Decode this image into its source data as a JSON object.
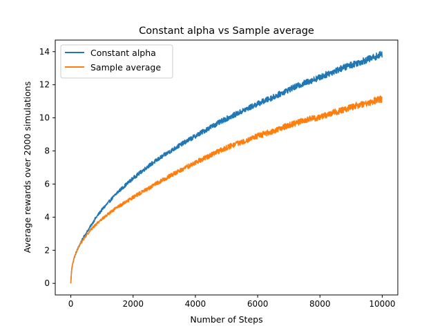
{
  "chart_data": {
    "type": "line",
    "title": "Constant alpha vs Sample average",
    "xlabel": "Number of Steps",
    "ylabel": "Average rewards over 2000 simulations",
    "xlim": [
      -500,
      10500
    ],
    "ylim": [
      -0.7,
      14.7
    ],
    "xticks": [
      0,
      2000,
      4000,
      6000,
      8000,
      10000
    ],
    "xtick_labels": [
      "0",
      "2000",
      "4000",
      "6000",
      "8000",
      "10000"
    ],
    "yticks": [
      0,
      2,
      4,
      6,
      8,
      10,
      12,
      14
    ],
    "ytick_labels": [
      "0",
      "2",
      "4",
      "6",
      "8",
      "10",
      "12",
      "14"
    ],
    "grid": false,
    "legend_position": "top-left",
    "x": [
      0,
      25,
      50,
      100,
      200,
      300,
      400,
      500,
      600,
      800,
      1000,
      1500,
      2000,
      2500,
      3000,
      3500,
      4000,
      4500,
      5000,
      5500,
      6000,
      6500,
      7000,
      7500,
      8000,
      8500,
      9000,
      9500,
      10000
    ],
    "series": [
      {
        "name": "Constant alpha",
        "color": "#1f77b4",
        "values": [
          0.0,
          0.8,
          1.1,
          1.5,
          2.0,
          2.4,
          2.75,
          3.05,
          3.35,
          3.95,
          4.45,
          5.5,
          6.35,
          7.1,
          7.75,
          8.35,
          8.9,
          9.45,
          9.95,
          10.4,
          10.85,
          11.25,
          11.7,
          12.1,
          12.45,
          12.85,
          13.2,
          13.5,
          13.85
        ]
      },
      {
        "name": "Sample average",
        "color": "#ff7f0e",
        "values": [
          0.0,
          0.8,
          1.1,
          1.5,
          2.0,
          2.35,
          2.65,
          2.9,
          3.15,
          3.55,
          3.9,
          4.6,
          5.2,
          5.75,
          6.3,
          6.8,
          7.3,
          7.75,
          8.2,
          8.55,
          8.9,
          9.2,
          9.55,
          9.85,
          10.05,
          10.35,
          10.65,
          10.9,
          11.15
        ]
      }
    ]
  }
}
